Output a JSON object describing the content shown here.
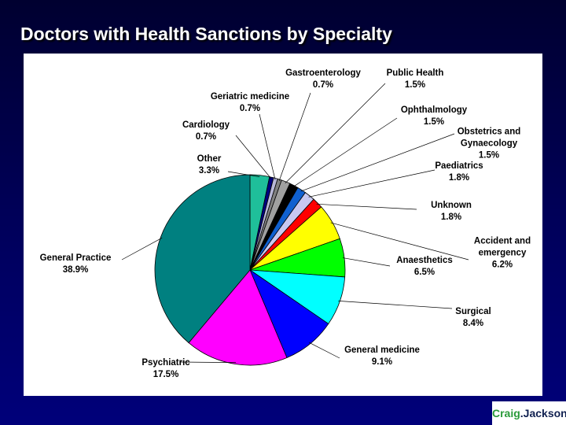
{
  "chart_data": {
    "type": "pie",
    "title": "Doctors with Health Sanctions by Specialty",
    "categories": [
      "Other",
      "Cardiology",
      "Geriatric medicine",
      "Gastroenterology",
      "Public Health",
      "Ophthalmology",
      "Obstetrics and Gynaecology",
      "Paediatrics",
      "Unknown",
      "Accident and emergency",
      "Anaesthetics",
      "Surgical",
      "General medicine",
      "Psychiatric",
      "General Practice"
    ],
    "values": [
      3.3,
      0.7,
      0.7,
      0.7,
      1.5,
      1.5,
      1.5,
      1.8,
      1.8,
      6.2,
      6.5,
      8.4,
      9.1,
      17.5,
      38.9
    ],
    "value_labels": [
      "3.3%",
      "0.7%",
      "0.7%",
      "0.7%",
      "1.5%",
      "1.5%",
      "1.5%",
      "1.8%",
      "1.8%",
      "6.2%",
      "6.5%",
      "8.4%",
      "9.1%",
      "17.5%",
      "38.9%"
    ],
    "colors": [
      "#1fbf9a",
      "#000080",
      "#b8b8d8",
      "#808080",
      "#a0a0a0",
      "#000000",
      "#1060d0",
      "#c8c8f0",
      "#ff0000",
      "#ffff00",
      "#00ff00",
      "#00ffff",
      "#0000ff",
      "#ff00ff",
      "#008080"
    ]
  },
  "logo": {
    "first": "Craig",
    "second": ".Jackson"
  }
}
